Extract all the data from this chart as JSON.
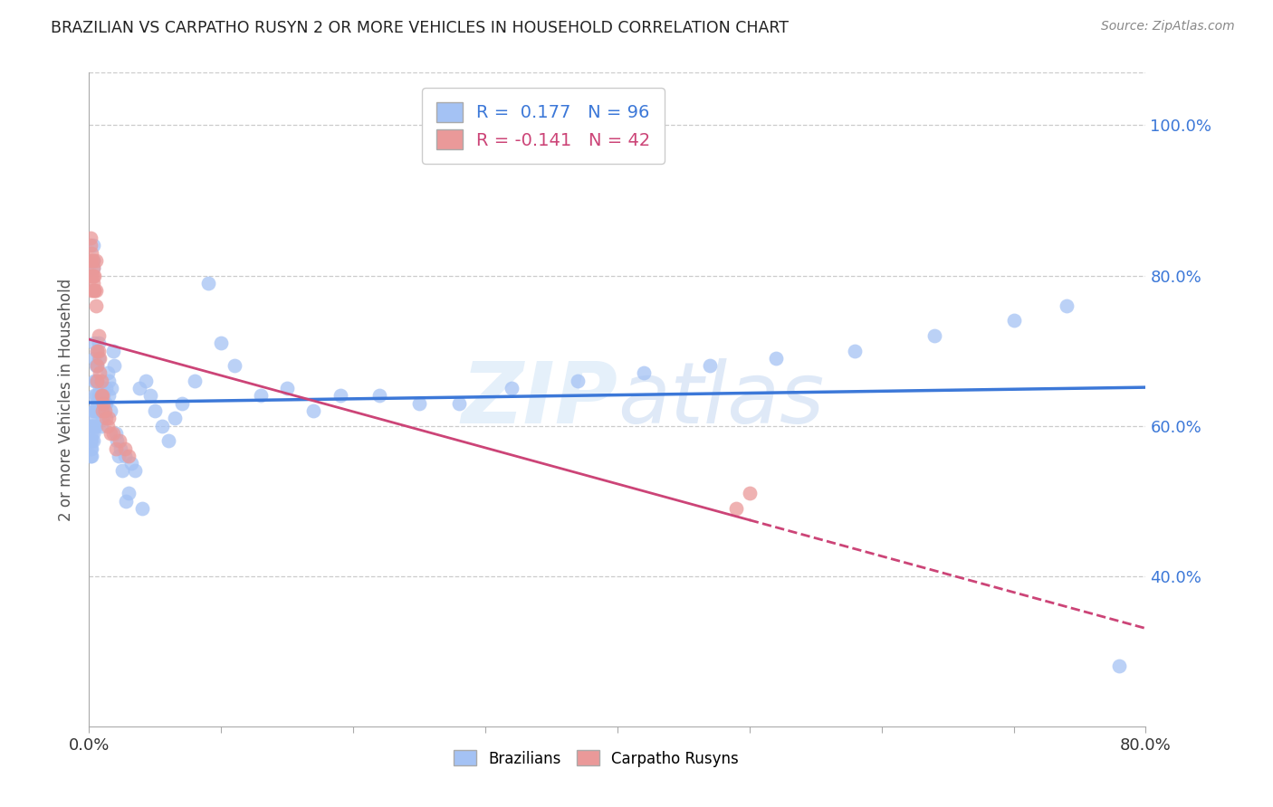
{
  "title": "BRAZILIAN VS CARPATHO RUSYN 2 OR MORE VEHICLES IN HOUSEHOLD CORRELATION CHART",
  "source": "Source: ZipAtlas.com",
  "ylabel": "2 or more Vehicles in Household",
  "xlim": [
    0.0,
    0.8
  ],
  "ylim": [
    0.2,
    1.07
  ],
  "yticks": [
    0.4,
    0.6,
    0.8,
    1.0
  ],
  "yticklabels": [
    "40.0%",
    "60.0%",
    "80.0%",
    "100.0%"
  ],
  "xtick_positions": [
    0.0,
    0.1,
    0.2,
    0.3,
    0.4,
    0.5,
    0.6,
    0.7,
    0.8
  ],
  "brazilian_R": 0.177,
  "brazilian_N": 96,
  "rusyn_R": -0.141,
  "rusyn_N": 42,
  "brazilian_color": "#a4c2f4",
  "rusyn_color": "#ea9999",
  "trend_blue": "#3c78d8",
  "trend_pink": "#cc4477",
  "watermark_zip": "ZIP",
  "watermark_atlas": "atlas",
  "background_color": "#ffffff",
  "grid_color": "#cccccc",
  "figsize": [
    14.06,
    8.92
  ],
  "dpi": 100,
  "brazilian_x": [
    0.001,
    0.001,
    0.001,
    0.001,
    0.002,
    0.002,
    0.002,
    0.002,
    0.002,
    0.002,
    0.003,
    0.003,
    0.003,
    0.003,
    0.003,
    0.003,
    0.003,
    0.004,
    0.004,
    0.004,
    0.004,
    0.004,
    0.004,
    0.005,
    0.005,
    0.005,
    0.005,
    0.005,
    0.006,
    0.006,
    0.006,
    0.006,
    0.007,
    0.007,
    0.007,
    0.007,
    0.008,
    0.008,
    0.008,
    0.009,
    0.009,
    0.01,
    0.01,
    0.01,
    0.011,
    0.011,
    0.012,
    0.013,
    0.013,
    0.014,
    0.015,
    0.015,
    0.016,
    0.017,
    0.018,
    0.019,
    0.02,
    0.021,
    0.022,
    0.024,
    0.025,
    0.027,
    0.028,
    0.03,
    0.032,
    0.035,
    0.038,
    0.04,
    0.043,
    0.046,
    0.05,
    0.055,
    0.06,
    0.065,
    0.07,
    0.08,
    0.09,
    0.1,
    0.11,
    0.13,
    0.15,
    0.17,
    0.19,
    0.22,
    0.25,
    0.28,
    0.32,
    0.37,
    0.42,
    0.47,
    0.52,
    0.58,
    0.64,
    0.7,
    0.74,
    0.78
  ],
  "brazilian_y": [
    0.6,
    0.58,
    0.56,
    0.57,
    0.61,
    0.59,
    0.57,
    0.58,
    0.56,
    0.6,
    0.62,
    0.6,
    0.58,
    0.84,
    0.82,
    0.81,
    0.59,
    0.64,
    0.62,
    0.6,
    0.66,
    0.69,
    0.71,
    0.62,
    0.6,
    0.68,
    0.66,
    0.64,
    0.63,
    0.7,
    0.68,
    0.66,
    0.64,
    0.62,
    0.71,
    0.69,
    0.65,
    0.63,
    0.64,
    0.62,
    0.6,
    0.65,
    0.63,
    0.61,
    0.64,
    0.62,
    0.63,
    0.65,
    0.63,
    0.67,
    0.66,
    0.64,
    0.62,
    0.65,
    0.7,
    0.68,
    0.59,
    0.58,
    0.56,
    0.57,
    0.54,
    0.56,
    0.5,
    0.51,
    0.55,
    0.54,
    0.65,
    0.49,
    0.66,
    0.64,
    0.62,
    0.6,
    0.58,
    0.61,
    0.63,
    0.66,
    0.79,
    0.71,
    0.68,
    0.64,
    0.65,
    0.62,
    0.64,
    0.64,
    0.63,
    0.63,
    0.65,
    0.66,
    0.67,
    0.68,
    0.69,
    0.7,
    0.72,
    0.74,
    0.76,
    0.28
  ],
  "rusyn_x": [
    0.001,
    0.001,
    0.001,
    0.002,
    0.002,
    0.002,
    0.002,
    0.002,
    0.003,
    0.003,
    0.003,
    0.003,
    0.004,
    0.004,
    0.004,
    0.005,
    0.005,
    0.005,
    0.006,
    0.006,
    0.006,
    0.007,
    0.007,
    0.008,
    0.008,
    0.009,
    0.009,
    0.01,
    0.01,
    0.011,
    0.012,
    0.013,
    0.014,
    0.015,
    0.016,
    0.018,
    0.02,
    0.023,
    0.027,
    0.03,
    0.49,
    0.5
  ],
  "rusyn_y": [
    0.84,
    0.82,
    0.85,
    0.8,
    0.78,
    0.82,
    0.8,
    0.83,
    0.82,
    0.8,
    0.81,
    0.79,
    0.78,
    0.8,
    0.78,
    0.78,
    0.76,
    0.82,
    0.66,
    0.68,
    0.7,
    0.72,
    0.7,
    0.69,
    0.67,
    0.66,
    0.64,
    0.64,
    0.62,
    0.63,
    0.62,
    0.61,
    0.6,
    0.61,
    0.59,
    0.59,
    0.57,
    0.58,
    0.57,
    0.56,
    0.49,
    0.51
  ]
}
